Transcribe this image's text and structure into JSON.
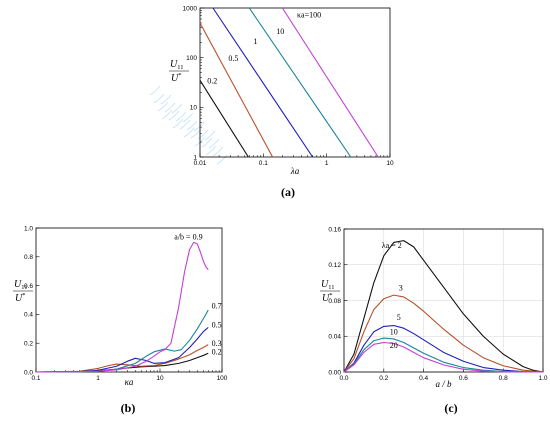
{
  "chart_data": [
    {
      "id": "a",
      "type": "line",
      "panel_label": "(a)",
      "title": "",
      "xlabel": "λa",
      "ylabel_top": "U",
      "ylabel_sub": "11",
      "ylabel_bottom": "U",
      "ylabel_sup": "*",
      "x_scale": "log",
      "y_scale": "log",
      "xlim": [
        0.01,
        10
      ],
      "ylim": [
        1,
        1000
      ],
      "x_ticks": [
        0.01,
        0.1,
        1,
        10
      ],
      "x_tick_labels": [
        "0.01",
        "0.1",
        "1",
        "10"
      ],
      "y_ticks": [
        1,
        10,
        100,
        1000
      ],
      "y_tick_labels": [
        "1",
        "10",
        "100",
        "1000"
      ],
      "grid": false,
      "series": [
        {
          "name": "0.2",
          "color": "#111111",
          "label_text": "0.2",
          "label_at": [
            0.013,
            30
          ],
          "x": [
            0.01,
            0.058
          ],
          "y": [
            35,
            1
          ]
        },
        {
          "name": "0.5",
          "color": "#b8502a",
          "label_text": "0.5",
          "label_at": [
            0.028,
            85
          ],
          "x": [
            0.01,
            0.14
          ],
          "y": [
            500,
            1
          ]
        },
        {
          "name": "1",
          "color": "#1f1fb5",
          "label_text": "1",
          "label_at": [
            0.07,
            190
          ],
          "x": [
            0.016,
            0.6
          ],
          "y": [
            1000,
            1
          ]
        },
        {
          "name": "10",
          "color": "#16879a",
          "label_text": "10",
          "label_at": [
            0.16,
            300
          ],
          "x": [
            0.06,
            2.4
          ],
          "y": [
            1000,
            1
          ]
        },
        {
          "name": "100",
          "color": "#c63fd8",
          "label_text": "κa=100",
          "label_at": [
            0.34,
            650
          ],
          "x": [
            0.2,
            6.5
          ],
          "y": [
            1000,
            1
          ]
        }
      ]
    },
    {
      "id": "b",
      "type": "line",
      "panel_label": "(b)",
      "title": "",
      "xlabel": "κa",
      "ylabel_top": "U",
      "ylabel_sub": "11",
      "ylabel_bottom": "U",
      "ylabel_sup": "*",
      "x_scale": "log",
      "y_scale": "linear",
      "xlim": [
        0.1,
        100
      ],
      "ylim": [
        0,
        1.0
      ],
      "x_ticks": [
        0.1,
        1,
        10,
        100
      ],
      "x_tick_labels": [
        "0.1",
        "1",
        "10",
        "100"
      ],
      "y_ticks": [
        0,
        0.2,
        0.4,
        0.6,
        0.8,
        1.0
      ],
      "y_tick_labels": [
        "0.0",
        "0.2",
        "0.4",
        "0.6",
        "0.8",
        "1.0"
      ],
      "grid": false,
      "series": [
        {
          "name": "0.2",
          "color": "#111111",
          "label_text": "0.2",
          "label_at": [
            68,
            0.12
          ],
          "x": [
            0.1,
            0.5,
            1,
            2,
            3,
            5,
            8,
            12,
            20,
            30,
            40,
            50,
            60
          ],
          "y": [
            0,
            0.002,
            0.008,
            0.02,
            0.028,
            0.036,
            0.04,
            0.045,
            0.06,
            0.08,
            0.1,
            0.115,
            0.13
          ]
        },
        {
          "name": "0.3",
          "color": "#b8502a",
          "label_text": "0.3",
          "label_at": [
            68,
            0.18
          ],
          "x": [
            0.1,
            0.5,
            1,
            1.5,
            2,
            3,
            5,
            8,
            12,
            20,
            30,
            40,
            50,
            60
          ],
          "y": [
            0,
            0.005,
            0.025,
            0.045,
            0.055,
            0.05,
            0.04,
            0.045,
            0.06,
            0.09,
            0.12,
            0.15,
            0.17,
            0.19
          ]
        },
        {
          "name": "0.5",
          "color": "#1f1fb5",
          "label_text": "0.5",
          "label_at": [
            68,
            0.31
          ],
          "x": [
            0.1,
            0.5,
            1,
            2,
            3,
            4,
            6,
            8,
            12,
            20,
            30,
            40,
            50,
            60
          ],
          "y": [
            0,
            0.003,
            0.012,
            0.04,
            0.075,
            0.095,
            0.08,
            0.06,
            0.065,
            0.1,
            0.17,
            0.23,
            0.28,
            0.31
          ]
        },
        {
          "name": "0.7",
          "color": "#16879a",
          "label_text": "0.7",
          "label_at": [
            68,
            0.44
          ],
          "x": [
            0.1,
            0.5,
            1,
            2,
            4,
            6,
            8,
            12,
            17,
            22,
            30,
            40,
            50,
            60
          ],
          "y": [
            0,
            0.002,
            0.006,
            0.02,
            0.06,
            0.11,
            0.14,
            0.16,
            0.145,
            0.155,
            0.22,
            0.3,
            0.37,
            0.43
          ]
        },
        {
          "name": "0.9",
          "color": "#c63fd8",
          "label_text": "a/b = 0.9",
          "label_at": [
            17,
            0.92
          ],
          "x": [
            0.1,
            0.5,
            1,
            2,
            4,
            6,
            8,
            10,
            12,
            15,
            20,
            25,
            30,
            35,
            40,
            45,
            50,
            55,
            60
          ],
          "y": [
            0,
            0.002,
            0.006,
            0.015,
            0.04,
            0.075,
            0.11,
            0.14,
            0.155,
            0.2,
            0.45,
            0.7,
            0.85,
            0.9,
            0.89,
            0.83,
            0.77,
            0.73,
            0.71
          ]
        }
      ]
    },
    {
      "id": "c",
      "type": "line",
      "panel_label": "(c)",
      "title": "",
      "xlabel": "a / b",
      "ylabel_top": "U",
      "ylabel_sub": "11",
      "ylabel_bottom": "U",
      "ylabel_sup": "*",
      "x_scale": "linear",
      "y_scale": "linear",
      "xlim": [
        0,
        1.0
      ],
      "ylim": [
        0,
        0.16
      ],
      "x_ticks": [
        0,
        0.2,
        0.4,
        0.6,
        0.8,
        1.0
      ],
      "x_tick_labels": [
        "0.0",
        "0.2",
        "0.4",
        "0.6",
        "0.8",
        "1.0"
      ],
      "y_ticks": [
        0,
        0.04,
        0.08,
        0.12,
        0.16
      ],
      "y_tick_labels": [
        "0.00",
        "0.04",
        "0.08",
        "0.12",
        "0.16"
      ],
      "grid": true,
      "series": [
        {
          "name": "2",
          "color": "#111111",
          "label_text": "λa = 2",
          "label_at": [
            0.19,
            0.139
          ],
          "x": [
            0,
            0.05,
            0.1,
            0.15,
            0.2,
            0.25,
            0.3,
            0.35,
            0.4,
            0.5,
            0.6,
            0.7,
            0.8,
            0.9,
            0.95,
            1.0
          ],
          "y": [
            0,
            0.02,
            0.06,
            0.1,
            0.13,
            0.145,
            0.147,
            0.14,
            0.125,
            0.095,
            0.065,
            0.04,
            0.02,
            0.006,
            0.002,
            0
          ]
        },
        {
          "name": "3",
          "color": "#b8502a",
          "label_text": "3",
          "label_at": [
            0.275,
            0.091
          ],
          "x": [
            0,
            0.05,
            0.1,
            0.15,
            0.2,
            0.25,
            0.3,
            0.35,
            0.4,
            0.5,
            0.6,
            0.7,
            0.8,
            0.9,
            1.0
          ],
          "y": [
            0,
            0.015,
            0.045,
            0.07,
            0.082,
            0.086,
            0.084,
            0.077,
            0.068,
            0.048,
            0.03,
            0.016,
            0.007,
            0.002,
            0
          ]
        },
        {
          "name": "5",
          "color": "#1f1fb5",
          "label_text": "5",
          "label_at": [
            0.265,
            0.058
          ],
          "x": [
            0,
            0.05,
            0.1,
            0.15,
            0.2,
            0.25,
            0.3,
            0.35,
            0.4,
            0.5,
            0.6,
            0.7,
            0.8,
            0.9,
            1.0
          ],
          "y": [
            0,
            0.01,
            0.03,
            0.045,
            0.051,
            0.052,
            0.049,
            0.043,
            0.036,
            0.022,
            0.012,
            0.005,
            0.002,
            0.0005,
            0
          ]
        },
        {
          "name": "10",
          "color": "#16879a",
          "label_text": "10",
          "label_at": [
            0.23,
            0.042
          ],
          "x": [
            0,
            0.05,
            0.1,
            0.15,
            0.2,
            0.25,
            0.3,
            0.35,
            0.4,
            0.5,
            0.6,
            0.7,
            0.8,
            1.0
          ],
          "y": [
            0,
            0.009,
            0.025,
            0.035,
            0.038,
            0.037,
            0.033,
            0.027,
            0.021,
            0.011,
            0.005,
            0.002,
            0.0005,
            0
          ]
        },
        {
          "name": "20",
          "color": "#c63fd8",
          "label_text": "20",
          "label_at": [
            0.23,
            0.027
          ],
          "x": [
            0,
            0.05,
            0.1,
            0.15,
            0.2,
            0.25,
            0.3,
            0.35,
            0.4,
            0.5,
            0.6,
            0.7,
            0.8,
            1.0
          ],
          "y": [
            0,
            0.008,
            0.022,
            0.031,
            0.033,
            0.032,
            0.028,
            0.022,
            0.016,
            0.008,
            0.003,
            0.001,
            0.0002,
            0
          ]
        }
      ]
    }
  ]
}
